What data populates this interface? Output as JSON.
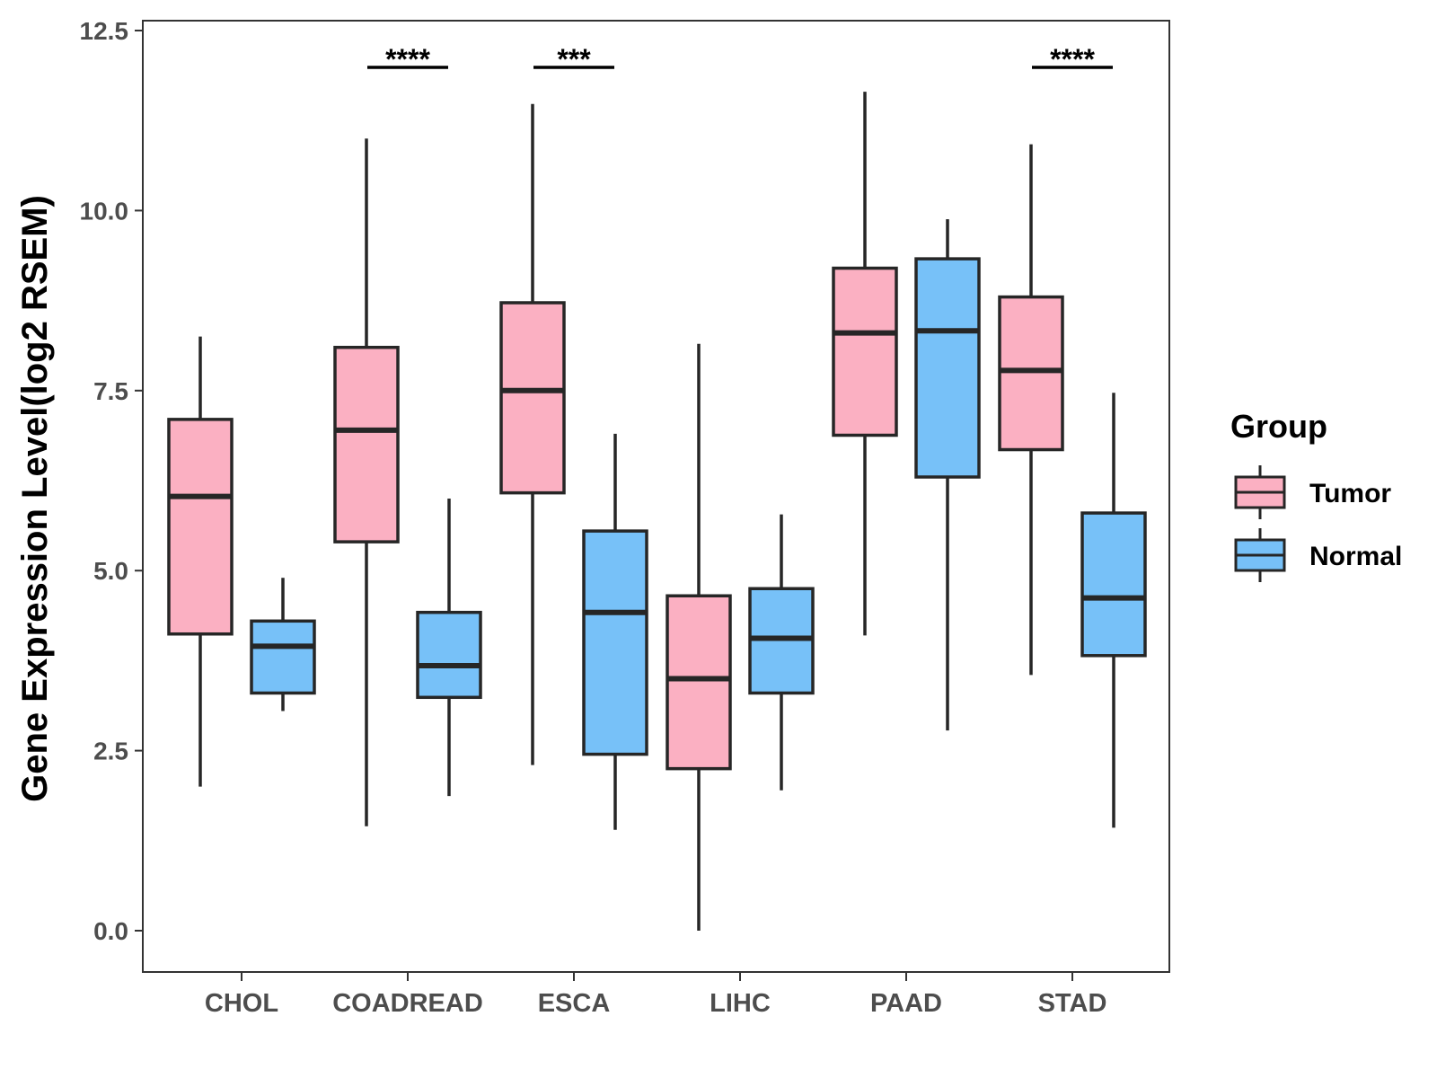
{
  "chart_data": {
    "type": "boxplot",
    "title": "",
    "xlabel": "",
    "ylabel": "Gene Expression Level(log2 RSEM)",
    "ylim": [
      -0.6,
      12.6
    ],
    "yticks": [
      "0.0",
      "2.5",
      "5.0",
      "7.5",
      "10.0",
      "12.5"
    ],
    "ytick_values": [
      0,
      2.5,
      5,
      7.5,
      10,
      12.5
    ],
    "categories": [
      "CHOL",
      "COADREAD",
      "ESCA",
      "LIHC",
      "PAAD",
      "STAD"
    ],
    "legend": {
      "title": "Group",
      "position": "right",
      "entries": [
        "Tumor",
        "Normal"
      ]
    },
    "colors": {
      "Tumor": "#FBB0C2",
      "Normal": "#77C1F8",
      "outline": "#262626"
    },
    "series": [
      {
        "name": "Tumor",
        "boxes": [
          {
            "min": 2.0,
            "q1": 4.12,
            "median": 6.03,
            "q3": 7.1,
            "max": 8.25
          },
          {
            "min": 1.45,
            "q1": 5.4,
            "median": 6.95,
            "q3": 8.1,
            "max": 11.0
          },
          {
            "min": 2.3,
            "q1": 6.08,
            "median": 7.5,
            "q3": 8.72,
            "max": 11.48
          },
          {
            "min": 0.0,
            "q1": 2.25,
            "median": 3.5,
            "q3": 4.65,
            "max": 8.15
          },
          {
            "min": 4.1,
            "q1": 6.88,
            "median": 8.3,
            "q3": 9.2,
            "max": 11.65
          },
          {
            "min": 3.55,
            "q1": 6.68,
            "median": 7.78,
            "q3": 8.8,
            "max": 10.92
          }
        ]
      },
      {
        "name": "Normal",
        "boxes": [
          {
            "min": 3.05,
            "q1": 3.3,
            "median": 3.95,
            "q3": 4.3,
            "max": 4.9
          },
          {
            "min": 1.87,
            "q1": 3.24,
            "median": 3.68,
            "q3": 4.42,
            "max": 6.0
          },
          {
            "min": 1.4,
            "q1": 2.45,
            "median": 4.42,
            "q3": 5.55,
            "max": 6.9
          },
          {
            "min": 1.95,
            "q1": 3.3,
            "median": 4.06,
            "q3": 4.75,
            "max": 5.78
          },
          {
            "min": 2.78,
            "q1": 6.3,
            "median": 8.33,
            "q3": 9.33,
            "max": 9.88
          },
          {
            "min": 1.43,
            "q1": 3.82,
            "median": 4.62,
            "q3": 5.8,
            "max": 7.47
          }
        ]
      }
    ],
    "annotations": [
      {
        "category": "COADREAD",
        "text": "****"
      },
      {
        "category": "ESCA",
        "text": "***"
      },
      {
        "category": "STAD",
        "text": "****"
      }
    ]
  }
}
